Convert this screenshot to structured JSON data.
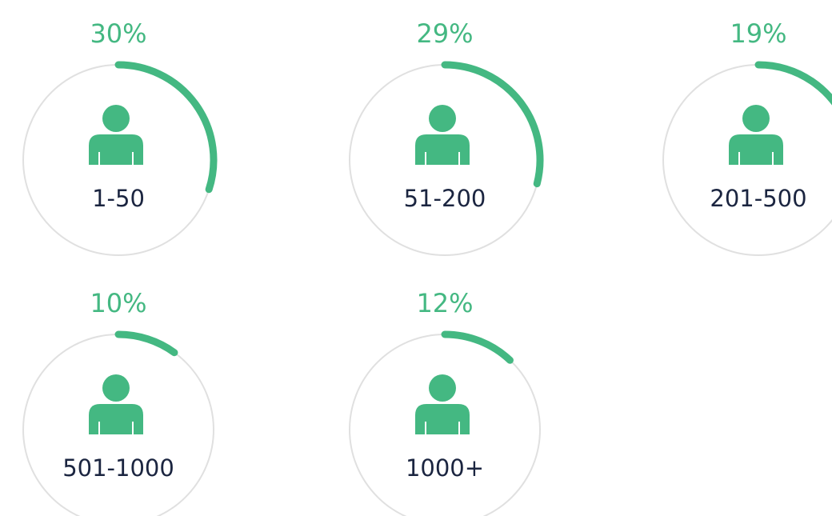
{
  "chart_data": {
    "type": "gauge",
    "categories": [
      "1-50",
      "51-200",
      "201-500",
      "501-1000",
      "1000+"
    ],
    "values": [
      30,
      29,
      19,
      10,
      12
    ],
    "value_labels": [
      "30%",
      "29%",
      "19%",
      "10%",
      "12%"
    ],
    "ylim": [
      0,
      100
    ],
    "color": "#44b882"
  }
}
